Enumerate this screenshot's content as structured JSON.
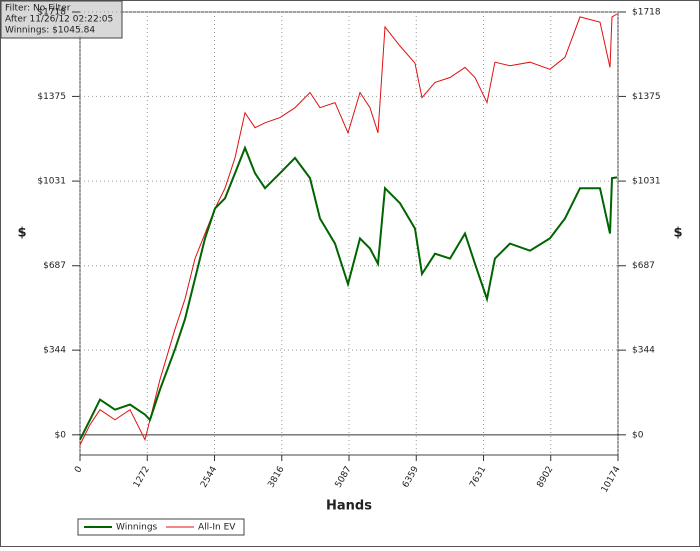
{
  "chart_data": {
    "type": "line",
    "info_box": [
      "Filter: No Filter",
      "After 11/26/12 02:22:05",
      "Winnings: $1045.84"
    ],
    "xlabel": "Hands",
    "ylabel": "$",
    "x": [
      0,
      189,
      378,
      662,
      946,
      1229,
      1324,
      1513,
      1797,
      1986,
      2175,
      2364,
      2553,
      2742,
      2931,
      3120,
      3309,
      3499,
      3782,
      4066,
      4350,
      4539,
      4823,
      5068,
      5295,
      5484,
      5635,
      5768,
      6051,
      6335,
      6467,
      6713,
      6997,
      7281,
      7470,
      7697,
      7847,
      8131,
      8509,
      8887,
      9171,
      9455,
      9833,
      10022,
      10060,
      10155
    ],
    "series": [
      {
        "name": "Winnings",
        "color": "#006400",
        "values": [
          -20,
          61,
          143,
          102,
          123,
          82,
          61,
          184,
          348,
          470,
          634,
          798,
          920,
          961,
          1063,
          1166,
          1063,
          1002,
          1063,
          1125,
          1043,
          879,
          777,
          613,
          798,
          757,
          695,
          1002,
          941,
          838,
          654,
          736,
          716,
          818,
          695,
          552,
          716,
          777,
          748,
          798,
          879,
          1002,
          1002,
          818,
          1043,
          1046
        ]
      },
      {
        "name": "All-In EV",
        "color": "#e01010",
        "values": [
          -41,
          41,
          102,
          61,
          102,
          -20,
          61,
          225,
          429,
          552,
          716,
          818,
          920,
          1002,
          1125,
          1309,
          1248,
          1268,
          1289,
          1329,
          1391,
          1329,
          1350,
          1227,
          1391,
          1329,
          1227,
          1657,
          1580,
          1510,
          1370,
          1432,
          1452,
          1493,
          1452,
          1350,
          1514,
          1500,
          1514,
          1485,
          1534,
          1698,
          1677,
          1493,
          1698,
          1710
        ]
      }
    ],
    "xlim": [
      0,
      10174
    ],
    "ylim": [
      -82,
      1718
    ],
    "xticks": [
      0,
      1272,
      2544,
      3816,
      5087,
      6359,
      7631,
      8902,
      10174
    ],
    "yticks": [
      {
        "value": 0,
        "label": "$0"
      },
      {
        "value": 344,
        "label": "$344"
      },
      {
        "value": 687,
        "label": "$687"
      },
      {
        "value": 1031,
        "label": "$1031"
      },
      {
        "value": 1375,
        "label": "$1375"
      },
      {
        "value": 1718,
        "label": "$1718"
      }
    ],
    "grid": true,
    "legend": "bottom-left"
  }
}
